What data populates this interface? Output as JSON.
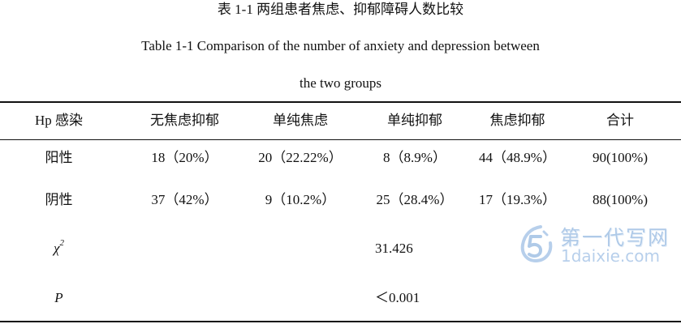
{
  "title_cn": "表 1-1  两组患者焦虑、抑郁障碍人数比较",
  "title_en_line1": "Table 1-1 Comparison of the number of anxiety and depression between",
  "title_en_line2": "the two groups",
  "table": {
    "headers": [
      "Hp 感染",
      "无焦虑抑郁",
      "单纯焦虑",
      "单纯抑郁",
      "焦虑抑郁",
      "合计"
    ],
    "rows": [
      [
        "阳性",
        "18（20%）",
        "20（22.22%）",
        "8（8.9%）",
        "44（48.9%）",
        "90(100%)"
      ],
      [
        "阴性",
        "37（42%）",
        "9（10.2%）",
        "25（28.4%）",
        "17（19.3%）",
        "88(100%)"
      ]
    ],
    "chi_label": "χ",
    "chi_sup": "2",
    "chi_value": "31.426",
    "p_label": "P",
    "p_value": "＜0.001"
  },
  "watermark": {
    "text_cn": "第一代写网",
    "url": "1daixie.com",
    "color": "#6f9fd6"
  }
}
